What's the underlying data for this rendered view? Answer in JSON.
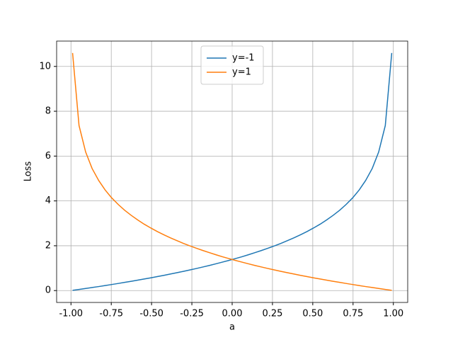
{
  "chart_data": {
    "type": "line",
    "x_label": "a",
    "y_label": "Loss",
    "x": [
      -0.99,
      -0.95,
      -0.909,
      -0.869,
      -0.828,
      -0.788,
      -0.748,
      -0.707,
      -0.667,
      -0.626,
      -0.586,
      -0.546,
      -0.505,
      -0.465,
      -0.424,
      -0.384,
      -0.343,
      -0.303,
      -0.263,
      -0.222,
      -0.182,
      -0.141,
      -0.101,
      -0.061,
      -0.02,
      0.02,
      0.061,
      0.101,
      0.141,
      0.182,
      0.222,
      0.263,
      0.303,
      0.343,
      0.384,
      0.424,
      0.465,
      0.505,
      0.546,
      0.586,
      0.626,
      0.667,
      0.707,
      0.748,
      0.788,
      0.828,
      0.869,
      0.909,
      0.95,
      0.99
    ],
    "series": [
      {
        "name": "y=-1",
        "color": "#1f77b4",
        "values": [
          0.01,
          0.051,
          0.093,
          0.136,
          0.179,
          0.224,
          0.27,
          0.317,
          0.365,
          0.414,
          0.464,
          0.516,
          0.569,
          0.623,
          0.679,
          0.737,
          0.796,
          0.857,
          0.92,
          0.985,
          1.052,
          1.122,
          1.194,
          1.269,
          1.346,
          1.427,
          1.511,
          1.599,
          1.691,
          1.788,
          1.889,
          1.996,
          2.108,
          2.228,
          2.355,
          2.491,
          2.636,
          2.793,
          2.963,
          3.15,
          3.355,
          3.584,
          3.842,
          4.14,
          4.488,
          4.911,
          5.448,
          6.184,
          7.362,
          10.597
        ]
      },
      {
        "name": "y=1",
        "color": "#ff7f0e",
        "values": [
          10.597,
          7.362,
          6.184,
          5.448,
          4.911,
          4.488,
          4.14,
          3.842,
          3.584,
          3.355,
          3.15,
          2.963,
          2.793,
          2.636,
          2.491,
          2.355,
          2.228,
          2.108,
          1.996,
          1.889,
          1.788,
          1.691,
          1.599,
          1.511,
          1.427,
          1.346,
          1.269,
          1.194,
          1.122,
          1.052,
          0.985,
          0.92,
          0.857,
          0.796,
          0.737,
          0.679,
          0.623,
          0.569,
          0.516,
          0.464,
          0.414,
          0.365,
          0.317,
          0.27,
          0.224,
          0.179,
          0.136,
          0.093,
          0.051,
          0.01
        ]
      }
    ],
    "xlim": [
      -1.089,
      1.089
    ],
    "ylim": [
      -0.53,
      11.13
    ],
    "xticks": [
      {
        "value": -1,
        "label": "-1.00"
      },
      {
        "value": -0.75,
        "label": "-0.75"
      },
      {
        "value": -0.5,
        "label": "-0.50"
      },
      {
        "value": -0.25,
        "label": "-0.25"
      },
      {
        "value": 0,
        "label": "0.00"
      },
      {
        "value": 0.25,
        "label": "0.25"
      },
      {
        "value": 0.5,
        "label": "0.50"
      },
      {
        "value": 0.75,
        "label": "0.75"
      },
      {
        "value": 1,
        "label": "1.00"
      }
    ],
    "yticks": [
      0,
      2,
      4,
      6,
      8,
      10
    ],
    "grid": true,
    "legend": "upper-center"
  }
}
